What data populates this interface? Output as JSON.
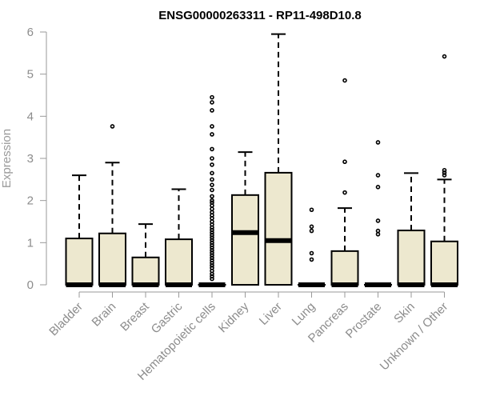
{
  "chart_data": {
    "type": "boxplot",
    "title": "ENSG00000263311 - RP11-498D10.8",
    "xlabel": "",
    "ylabel": "Expression",
    "ylim": [
      0,
      6
    ],
    "yticks": [
      0,
      1,
      2,
      3,
      4,
      5,
      6
    ],
    "grid": false,
    "box_color": "#EDE8CF",
    "categories": [
      "Bladder",
      "Brain",
      "Breast",
      "Gastric",
      "Hematopoietic cells",
      "Kidney",
      "Liver",
      "Lung",
      "Pancreas",
      "Prostate",
      "Skin",
      "Unknown / Other"
    ],
    "boxes": [
      {
        "name": "Bladder",
        "min": 0,
        "q1": 0,
        "median": 0,
        "q3": 1.1,
        "max": 2.6,
        "outliers": []
      },
      {
        "name": "Brain",
        "min": 0,
        "q1": 0,
        "median": 0,
        "q3": 1.22,
        "max": 2.9,
        "outliers": [
          3.76
        ]
      },
      {
        "name": "Breast",
        "min": 0,
        "q1": 0,
        "median": 0,
        "q3": 0.65,
        "max": 1.44,
        "outliers": []
      },
      {
        "name": "Gastric",
        "min": 0,
        "q1": 0,
        "median": 0,
        "q3": 1.08,
        "max": 2.27,
        "outliers": []
      },
      {
        "name": "Hematopoietic cells",
        "min": 0,
        "q1": 0,
        "median": 0,
        "q3": 0,
        "max": 0,
        "outliers": [
          4.45,
          4.33,
          4.14,
          3.76,
          3.57,
          3.22,
          3.0,
          2.85,
          2.65,
          2.5,
          2.37,
          2.25,
          2.1,
          2.0,
          1.95,
          1.88,
          1.8,
          1.72,
          1.65,
          1.58,
          1.5,
          1.43,
          1.36,
          1.3,
          1.24,
          1.18,
          1.12,
          1.06,
          1.0,
          0.94,
          0.88,
          0.82,
          0.76,
          0.7,
          0.64,
          0.58,
          0.52,
          0.46,
          0.4,
          0.33,
          0.26,
          0.2,
          0.14
        ]
      },
      {
        "name": "Kidney",
        "min": 0,
        "q1": 0,
        "median": 1.24,
        "q3": 2.13,
        "max": 3.15,
        "outliers": []
      },
      {
        "name": "Liver",
        "min": 0,
        "q1": 0,
        "median": 1.05,
        "q3": 2.66,
        "max": 5.95,
        "outliers": []
      },
      {
        "name": "Lung",
        "min": 0,
        "q1": 0,
        "median": 0,
        "q3": 0,
        "max": 0,
        "outliers": [
          1.78,
          1.38,
          1.28,
          0.75,
          0.6
        ]
      },
      {
        "name": "Pancreas",
        "min": 0,
        "q1": 0,
        "median": 0,
        "q3": 0.8,
        "max": 1.82,
        "outliers": [
          4.85,
          2.92,
          2.19
        ]
      },
      {
        "name": "Prostate",
        "min": 0,
        "q1": 0,
        "median": 0,
        "q3": 0,
        "max": 0,
        "outliers": [
          3.38,
          2.6,
          2.32,
          1.52,
          1.28,
          1.2
        ]
      },
      {
        "name": "Skin",
        "min": 0,
        "q1": 0,
        "median": 0,
        "q3": 1.29,
        "max": 2.65,
        "outliers": []
      },
      {
        "name": "Unknown / Other",
        "min": 0,
        "q1": 0,
        "median": 0,
        "q3": 1.03,
        "max": 2.5,
        "outliers": [
          5.42,
          2.72,
          2.66,
          2.6
        ]
      }
    ]
  }
}
